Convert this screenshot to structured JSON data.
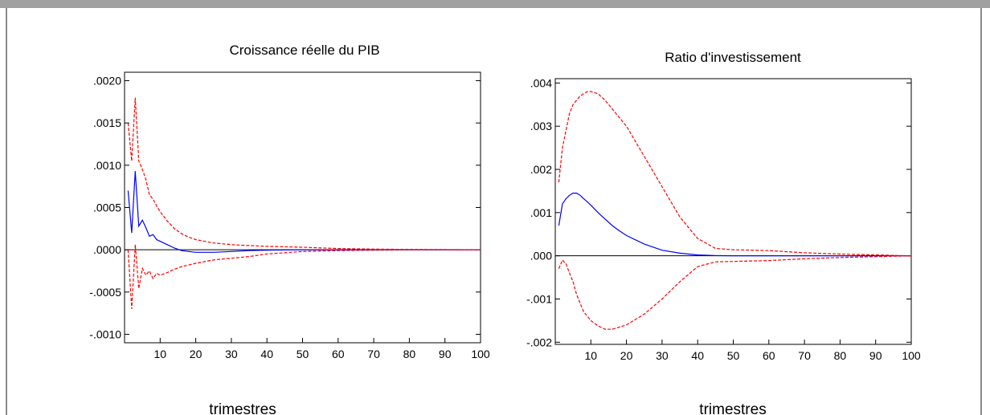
{
  "chart_data": [
    {
      "type": "line",
      "title": "Croissance réelle du PIB",
      "xlabel": "trimestres",
      "ylabel": "",
      "xlim": [
        0,
        100
      ],
      "ylim": [
        -0.0011,
        0.0021
      ],
      "x_ticks": [
        10,
        20,
        30,
        40,
        50,
        60,
        70,
        80,
        90,
        100
      ],
      "x_tick_labels": [
        "10",
        "20",
        "30",
        "40",
        "50",
        "60",
        "70",
        "80",
        "90",
        "100"
      ],
      "y_ticks": [
        -0.001,
        -0.0005,
        0,
        0.0005,
        0.001,
        0.0015,
        0.002
      ],
      "y_tick_labels": [
        "-.0010",
        "-.0005",
        ".0000",
        ".0005",
        ".0010",
        ".0015",
        ".0020"
      ],
      "zero_line": true,
      "grid": false,
      "series": [
        {
          "style": "solid",
          "color": "#0000ff",
          "x": [
            1,
            2,
            3,
            4,
            5,
            6,
            7,
            8,
            9,
            10,
            12,
            14,
            16,
            18,
            20,
            25,
            30,
            35,
            40,
            50,
            60,
            70,
            80,
            90,
            100
          ],
          "values": [
            0.0007,
            0.0002,
            0.00093,
            0.00028,
            0.00035,
            0.00026,
            0.00016,
            0.00018,
            0.00012,
            0.0001,
            6e-05,
            2e-05,
            -1e-05,
            -2e-05,
            -3e-05,
            -3e-05,
            -2e-05,
            -1e-05,
            -5e-06,
            0,
            0,
            0,
            0,
            0,
            0
          ]
        },
        {
          "style": "dashed",
          "color": "#ff0000",
          "x": [
            1,
            2,
            3,
            4,
            5,
            6,
            7,
            8,
            9,
            10,
            12,
            14,
            16,
            18,
            20,
            25,
            30,
            35,
            40,
            50,
            60,
            70,
            80,
            90,
            100
          ],
          "values": [
            0.0015,
            0.00105,
            0.0018,
            0.00105,
            0.00095,
            0.00083,
            0.00065,
            0.0006,
            0.00052,
            0.00045,
            0.00034,
            0.00025,
            0.00019,
            0.00015,
            0.00012,
            8e-05,
            6e-05,
            5e-05,
            4e-05,
            3e-05,
            1.5e-05,
            8e-06,
            4e-06,
            2e-06,
            0
          ]
        },
        {
          "style": "dashed",
          "color": "#ff0000",
          "x": [
            1,
            2,
            3,
            4,
            5,
            6,
            7,
            8,
            9,
            10,
            12,
            14,
            16,
            18,
            20,
            25,
            30,
            35,
            40,
            50,
            60,
            70,
            80,
            90,
            100
          ],
          "values": [
            0.0,
            -0.0007,
            6e-05,
            -0.00046,
            -0.00022,
            -0.0003,
            -0.00025,
            -0.00034,
            -0.00028,
            -0.0003,
            -0.00027,
            -0.00023,
            -0.0002,
            -0.00018,
            -0.00016,
            -0.00012,
            -0.0001,
            -8e-05,
            -5e-05,
            -2e-05,
            -1e-05,
            -5e-06,
            0,
            0,
            0
          ]
        }
      ]
    },
    {
      "type": "line",
      "title": "Ratio d'investissement",
      "xlabel": "trimestres",
      "ylabel": "",
      "xlim": [
        0,
        100
      ],
      "ylim": [
        -0.00205,
        0.0041
      ],
      "x_ticks": [
        10,
        20,
        30,
        40,
        50,
        60,
        70,
        80,
        90,
        100
      ],
      "x_tick_labels": [
        "10",
        "20",
        "30",
        "40",
        "50",
        "60",
        "70",
        "80",
        "90",
        "100"
      ],
      "y_ticks": [
        -0.002,
        -0.001,
        0,
        0.001,
        0.002,
        0.003,
        0.004
      ],
      "y_tick_labels": [
        "-.002",
        "-.001",
        ".000",
        ".001",
        ".002",
        ".003",
        ".004"
      ],
      "zero_line": true,
      "grid": false,
      "series": [
        {
          "style": "solid",
          "color": "#0000ff",
          "x": [
            1,
            2,
            3,
            4,
            5,
            6,
            7,
            8,
            9,
            10,
            12,
            14,
            16,
            18,
            20,
            25,
            30,
            35,
            40,
            45,
            50,
            60,
            70,
            80,
            90,
            100
          ],
          "values": [
            0.0007,
            0.0012,
            0.00132,
            0.0014,
            0.00145,
            0.00145,
            0.0014,
            0.00132,
            0.00125,
            0.00117,
            0.001,
            0.00085,
            0.0007,
            0.00058,
            0.00047,
            0.00027,
            0.00013,
            6e-05,
            2e-05,
            5e-06,
            0,
            0,
            0,
            0,
            0,
            0
          ]
        },
        {
          "style": "dashed",
          "color": "#ff0000",
          "x": [
            1,
            2,
            3,
            4,
            5,
            6,
            7,
            8,
            9,
            10,
            12,
            14,
            16,
            18,
            20,
            25,
            30,
            35,
            40,
            45,
            50,
            60,
            70,
            80,
            90,
            100
          ],
          "values": [
            0.0017,
            0.0025,
            0.0029,
            0.0033,
            0.0035,
            0.0036,
            0.0037,
            0.00375,
            0.0038,
            0.0038,
            0.00375,
            0.0036,
            0.0034,
            0.0032,
            0.003,
            0.0023,
            0.0016,
            0.0009,
            0.0004,
            0.00017,
            0.00014,
            0.00012,
            7e-05,
            4e-05,
            2e-05,
            0
          ]
        },
        {
          "style": "dashed",
          "color": "#ff0000",
          "x": [
            1,
            2,
            3,
            4,
            5,
            6,
            7,
            8,
            9,
            10,
            12,
            14,
            16,
            18,
            20,
            25,
            30,
            35,
            40,
            45,
            50,
            60,
            70,
            80,
            90,
            100
          ],
          "values": [
            -0.0003,
            -0.0001,
            -0.00018,
            -0.0004,
            -0.0006,
            -0.0009,
            -0.0011,
            -0.0013,
            -0.0014,
            -0.0015,
            -0.00162,
            -0.0017,
            -0.0017,
            -0.00165,
            -0.0016,
            -0.00135,
            -0.001,
            -0.0006,
            -0.00025,
            -0.00014,
            -0.00013,
            -0.00011,
            -7e-05,
            -4e-05,
            -2e-05,
            0
          ]
        }
      ]
    }
  ]
}
